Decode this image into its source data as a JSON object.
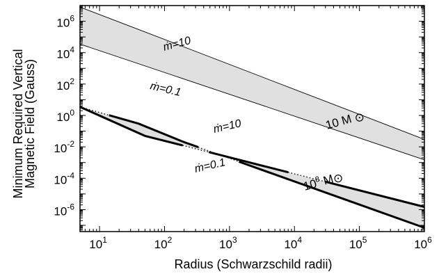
{
  "chart_data": {
    "type": "line",
    "xlabel": "Radius (Schwarzschild radii)",
    "ylabel_lines": [
      "Minimum Required Vertical",
      "Magnetic Field (Gauss)"
    ],
    "x_scale": "log",
    "y_scale": "log",
    "xlim": [
      5,
      1000000
    ],
    "ylim": [
      4e-08,
      10000000
    ],
    "x_tick_labels": [
      {
        "value": 10,
        "base": "10",
        "exp": "1"
      },
      {
        "value": 100,
        "base": "10",
        "exp": "2"
      },
      {
        "value": 1000,
        "base": "10",
        "exp": "3"
      },
      {
        "value": 10000,
        "base": "10",
        "exp": "4"
      },
      {
        "value": 100000,
        "base": "10",
        "exp": "5"
      },
      {
        "value": 1000000,
        "base": "10",
        "exp": "6"
      }
    ],
    "y_tick_labels": [
      {
        "value": 1000000,
        "base": "10",
        "exp": "6"
      },
      {
        "value": 10000,
        "base": "10",
        "exp": "4"
      },
      {
        "value": 100,
        "base": "10",
        "exp": "2"
      },
      {
        "value": 1,
        "base": "10",
        "exp": "0"
      },
      {
        "value": 0.01,
        "base": "10",
        "exp": "-2"
      },
      {
        "value": 0.0001,
        "base": "10",
        "exp": "-4"
      },
      {
        "value": 1e-06,
        "base": "10",
        "exp": "-6"
      }
    ],
    "bands": [
      {
        "mass_label_base": "10 M",
        "mass_label_exp": "",
        "fill": "#e0e0e0",
        "upper": {
          "annotation": "ṁ=10",
          "line_width": 0.9,
          "points": [
            [
              5,
              8000000
            ],
            [
              40,
              300000
            ],
            [
              1000000,
              0.03
            ]
          ]
        },
        "lower": {
          "annotation": "ṁ=0.1",
          "line_width": 0.9,
          "points": [
            [
              5,
              35000
            ],
            [
              1000000,
              0.0015
            ]
          ]
        }
      },
      {
        "mass_label_base": "10",
        "mass_label_exp": "8",
        "mass_label_suffix": " M",
        "fill": "#e0e0e0",
        "upper": {
          "annotation": "ṁ=10",
          "line_width": 3,
          "points": [
            [
              5,
              3.5
            ],
            [
              50,
              0.05
            ],
            [
              1000000,
              1.5e-06
            ]
          ],
          "dotted_segments": [
            [
              190,
              480
            ],
            [
              8000,
              30000
            ]
          ]
        },
        "lower": {
          "annotation": "ṁ=0.1",
          "line_width": 3,
          "points": [
            [
              5,
              3.5
            ],
            [
              40,
              0.3
            ],
            [
              200,
              0.02
            ],
            [
              1000000,
              7e-08
            ]
          ],
          "dotted_segments": [
            [
              5,
              14
            ],
            [
              330,
              1400
            ]
          ]
        }
      }
    ],
    "grid": false,
    "colors": {
      "band_fill": "#e0e0e0",
      "line": "#000000"
    }
  }
}
